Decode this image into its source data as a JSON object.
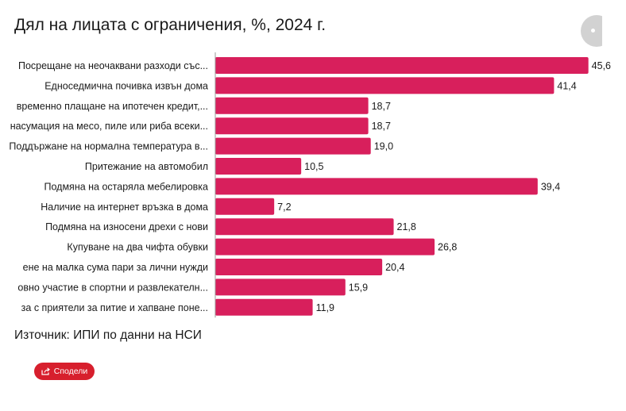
{
  "chart_data": {
    "type": "bar",
    "orientation": "horizontal",
    "title": "Дял на лицата с ограничения, %, 2024 г.",
    "categories": [
      "Посрещане на неочаквани разходи със...",
      "Едноседмична почивка извън дома",
      "временно плащане на ипотечен кредит,...",
      "насумация на месо, пиле или риба всеки...",
      "Поддържане на нормална температура в...",
      "Притежание на автомобил",
      "Подмяна на остаряла мебелировка",
      "Наличие на интернет връзка в дома",
      "Подмяна на износени дрехи с нови",
      "Купуване на два чифта обувки",
      "ене на малка сума пари за лични нужди",
      "овно участие в спортни и развлекателн...",
      "за с приятели за питие и хапване поне..."
    ],
    "values": [
      45.6,
      41.4,
      18.7,
      18.7,
      19.0,
      10.5,
      39.4,
      7.2,
      21.8,
      26.8,
      20.4,
      15.9,
      11.9
    ],
    "value_labels": [
      "45,6",
      "41,4",
      "18,7",
      "18,7",
      "19,0",
      "10,5",
      "39,4",
      "7,2",
      "21,8",
      "26,8",
      "20,4",
      "15,9",
      "11,9"
    ],
    "xlim": [
      0,
      50
    ],
    "bar_color": "#d81f5c",
    "xlabel": "",
    "ylabel": ""
  },
  "source": "Източник: ИПИ по данни на НСИ",
  "share": {
    "label": "Сподели",
    "icon": "share-icon",
    "color": "#d71f2d"
  }
}
